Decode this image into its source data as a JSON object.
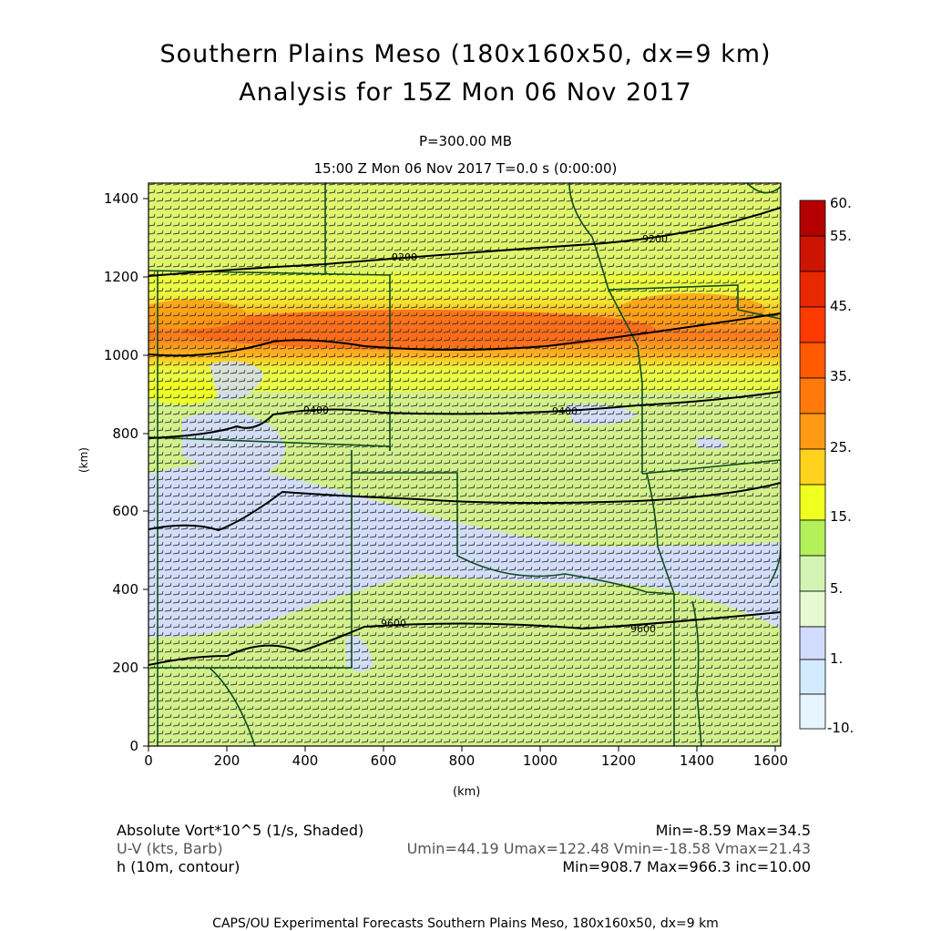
{
  "title": {
    "line1": "Southern Plains Meso (180x160x50, dx=9 km)",
    "line2": "Analysis for 15Z Mon 06 Nov 2017"
  },
  "level": "P=300.00 MB",
  "time_line": "15:00 Z Mon 06 Nov 2017   T=0.0 s (0:00:00)",
  "axes": {
    "ylabel": "(km)",
    "xlabel": "(km)",
    "yticks": [
      "0",
      "200",
      "400",
      "600",
      "800",
      "1000",
      "1200",
      "1400"
    ],
    "xticks": [
      "0",
      "200",
      "400",
      "600",
      "800",
      "1000",
      "1200",
      "1400",
      "1600"
    ]
  },
  "legend": {
    "labels": [
      "60.",
      "55.",
      "45.",
      "35.",
      "25.",
      "15.",
      "5.",
      "1.",
      "-10."
    ],
    "colors": [
      "#b50000",
      "#cc1400",
      "#e82800",
      "#ff5a00",
      "#ff9a14",
      "#ffd21e",
      "#f0ff1e",
      "#b4f05a",
      "#d2f5b4",
      "#d2dcff",
      "#d2ebff",
      "#e6f5ff"
    ]
  },
  "contours": {
    "labels": [
      "9200",
      "9200",
      "9400",
      "9400",
      "9600",
      "9600"
    ]
  },
  "info": {
    "field1": "Absolute Vort*10^5 (1/s, Shaded)",
    "field1_stats": "Min=-8.59 Max=34.5",
    "field2": "U-V (kts, Barb)",
    "field2_stats": "Umin=44.19 Umax=122.48 Vmin=-18.58 Vmax=21.43",
    "field3": "h (10m, contour)",
    "field3_stats": "Min=908.7 Max=966.3 inc=10.00"
  },
  "footer": "CAPS/OU Experimental Forecasts  Southern Plains Meso, 180x160x50, dx=9 km"
}
